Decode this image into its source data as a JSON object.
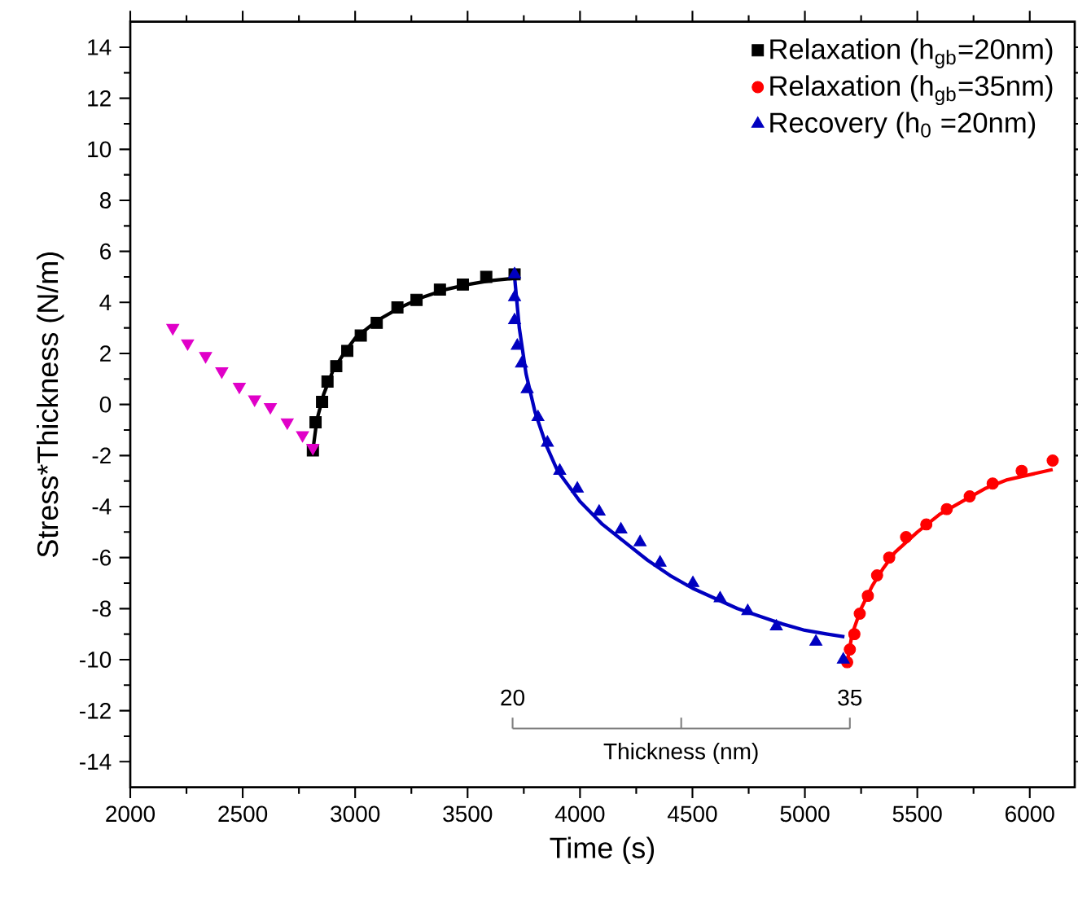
{
  "chart_data": {
    "type": "scatter",
    "xlabel": "Time (s)",
    "ylabel": "Stress*Thickness (N/m)",
    "xlim": [
      2000,
      6200
    ],
    "ylim": [
      -15,
      15
    ],
    "xticks": [
      2000,
      2500,
      3000,
      3500,
      4000,
      4500,
      5000,
      5500,
      6000
    ],
    "yticks": [
      -14,
      -12,
      -10,
      -8,
      -6,
      -4,
      -2,
      0,
      2,
      4,
      6,
      8,
      10,
      12,
      14
    ],
    "legend": "top right",
    "grid": false,
    "series": [
      {
        "name": "Relaxation (h$_{gb}$=20nm)",
        "color": "#000000",
        "marker": "square",
        "x": [
          2812,
          2824,
          2853,
          2877,
          2916,
          2965,
          3025,
          3096,
          3188,
          3273,
          3377,
          3479,
          3583,
          3709
        ],
        "values": [
          -1.8,
          -0.7,
          0.1,
          0.9,
          1.5,
          2.1,
          2.7,
          3.2,
          3.8,
          4.1,
          4.5,
          4.7,
          5.0,
          5.1
        ]
      },
      {
        "name": "Relaxation (h$_{gb}$=35nm)",
        "color": "#ff0000",
        "marker": "circle",
        "x": [
          5188,
          5200,
          5220,
          5244,
          5280,
          5321,
          5375,
          5450,
          5540,
          5631,
          5733,
          5835,
          5964,
          6102
        ],
        "values": [
          -10.1,
          -9.6,
          -9.0,
          -8.2,
          -7.5,
          -6.7,
          -6.0,
          -5.2,
          -4.7,
          -4.1,
          -3.6,
          -3.1,
          -2.6,
          -2.2
        ]
      },
      {
        "name": "Recovery   (h$_{0}$ =20nm)",
        "color": "#0000c0",
        "marker": "triangle",
        "x": [
          3709,
          3709,
          3709,
          3721,
          3740,
          3765,
          3813,
          3855,
          3910,
          3988,
          4085,
          4182,
          4267,
          4356,
          4502,
          4623,
          4746,
          4873,
          5049,
          5171
        ],
        "values": [
          5.1,
          4.2,
          3.3,
          2.3,
          1.6,
          0.6,
          -0.5,
          -1.5,
          -2.6,
          -3.3,
          -4.2,
          -4.9,
          -5.4,
          -6.2,
          -7.0,
          -7.6,
          -8.1,
          -8.7,
          -9.3,
          -10.0
        ]
      },
      {
        "color": "#e000c8",
        "marker": "triangle-down",
        "x": [
          2189,
          2255,
          2335,
          2407,
          2485,
          2553,
          2623,
          2698,
          2766,
          2812
        ],
        "values": [
          3.0,
          2.4,
          1.9,
          1.3,
          0.7,
          0.2,
          -0.1,
          -0.7,
          -1.2,
          -1.7
        ]
      },
      {
        "type": "line",
        "color": "#000000",
        "marker": "none",
        "x": [
          2812,
          2830,
          2860,
          2900,
          2950,
          3000,
          3100,
          3200,
          3300,
          3400,
          3500,
          3600,
          3709
        ],
        "values": [
          -1.8,
          -0.6,
          0.4,
          1.3,
          2.0,
          2.6,
          3.3,
          3.8,
          4.2,
          4.5,
          4.7,
          4.85,
          4.95
        ]
      },
      {
        "type": "line",
        "color": "#0000c0",
        "marker": "none",
        "x": [
          3709,
          3730,
          3760,
          3800,
          3850,
          3900,
          4000,
          4100,
          4200,
          4300,
          4400,
          4500,
          4600,
          4700,
          4800,
          4900,
          5000,
          5100,
          5176
        ],
        "values": [
          5.0,
          3.0,
          1.2,
          -0.3,
          -1.6,
          -2.6,
          -3.8,
          -4.7,
          -5.4,
          -6.1,
          -6.7,
          -7.2,
          -7.6,
          -8.0,
          -8.3,
          -8.6,
          -8.85,
          -9.0,
          -9.1
        ]
      },
      {
        "type": "line",
        "color": "#ff0000",
        "marker": "none",
        "x": [
          5188,
          5210,
          5250,
          5300,
          5350,
          5400,
          5500,
          5600,
          5700,
          5800,
          5900,
          6000,
          6102
        ],
        "values": [
          -10.1,
          -9.0,
          -8.0,
          -7.1,
          -6.4,
          -5.8,
          -5.0,
          -4.3,
          -3.8,
          -3.3,
          -2.95,
          -2.75,
          -2.55
        ]
      }
    ],
    "annotations": [
      "20",
      "35",
      "Thickness (nm)"
    ]
  }
}
